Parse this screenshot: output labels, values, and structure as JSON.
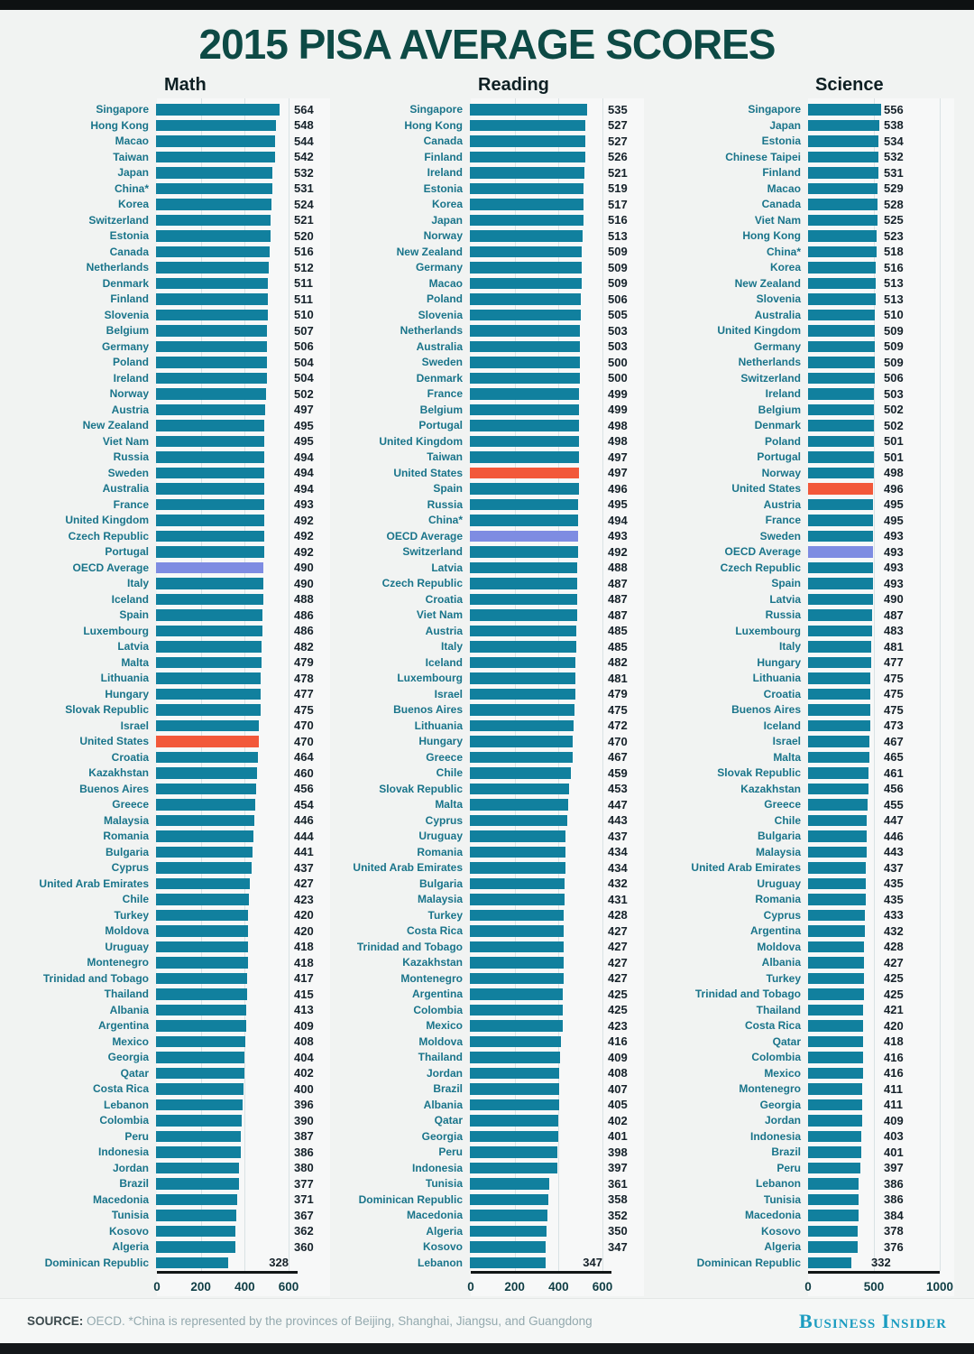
{
  "title": "2015 PISA AVERAGE SCORES",
  "footer": {
    "source_label": "SOURCE:",
    "source_text": "OECD. *China is represented by the provinces of Beijing, Shanghai, Jiangsu, and Guangdong",
    "brand": "Business Insider"
  },
  "colors": {
    "bar": "#11809e",
    "highlight_us": "#f2583a",
    "highlight_oecd": "#7e8ce2",
    "title_text": "#0d4a45",
    "label_text": "#19748a",
    "value_text": "#16222a",
    "background": "#f1f3f2",
    "axis": "#121617",
    "gridline": "#d9e2e4",
    "brand_text": "#1b9cc0"
  },
  "chart_data": [
    {
      "type": "bar",
      "orientation": "horizontal",
      "title": "Math",
      "xlim": [
        0,
        600
      ],
      "xticks": [
        0,
        200,
        400,
        600
      ],
      "grid": true,
      "rows": [
        {
          "label": "Singapore",
          "value": 564
        },
        {
          "label": "Hong Kong",
          "value": 548
        },
        {
          "label": "Macao",
          "value": 544
        },
        {
          "label": "Taiwan",
          "value": 542
        },
        {
          "label": "Japan",
          "value": 532
        },
        {
          "label": "China*",
          "value": 531
        },
        {
          "label": "Korea",
          "value": 524
        },
        {
          "label": "Switzerland",
          "value": 521
        },
        {
          "label": "Estonia",
          "value": 520
        },
        {
          "label": "Canada",
          "value": 516
        },
        {
          "label": "Netherlands",
          "value": 512
        },
        {
          "label": "Denmark",
          "value": 511
        },
        {
          "label": "Finland",
          "value": 511
        },
        {
          "label": "Slovenia",
          "value": 510
        },
        {
          "label": "Belgium",
          "value": 507
        },
        {
          "label": "Germany",
          "value": 506
        },
        {
          "label": "Poland",
          "value": 504
        },
        {
          "label": "Ireland",
          "value": 504
        },
        {
          "label": "Norway",
          "value": 502
        },
        {
          "label": "Austria",
          "value": 497
        },
        {
          "label": "New Zealand",
          "value": 495
        },
        {
          "label": "Viet Nam",
          "value": 495
        },
        {
          "label": "Russia",
          "value": 494
        },
        {
          "label": "Sweden",
          "value": 494
        },
        {
          "label": "Australia",
          "value": 494
        },
        {
          "label": "France",
          "value": 493
        },
        {
          "label": "United Kingdom",
          "value": 492
        },
        {
          "label": "Czech Republic",
          "value": 492
        },
        {
          "label": "Portugal",
          "value": 492
        },
        {
          "label": "OECD Average",
          "value": 490,
          "highlight": "oecd"
        },
        {
          "label": "Italy",
          "value": 490
        },
        {
          "label": "Iceland",
          "value": 488
        },
        {
          "label": "Spain",
          "value": 486
        },
        {
          "label": "Luxembourg",
          "value": 486
        },
        {
          "label": "Latvia",
          "value": 482
        },
        {
          "label": "Malta",
          "value": 479
        },
        {
          "label": "Lithuania",
          "value": 478
        },
        {
          "label": "Hungary",
          "value": 477
        },
        {
          "label": "Slovak Republic",
          "value": 475
        },
        {
          "label": "Israel",
          "value": 470
        },
        {
          "label": "United States",
          "value": 470,
          "highlight": "us"
        },
        {
          "label": "Croatia",
          "value": 464
        },
        {
          "label": "Kazakhstan",
          "value": 460
        },
        {
          "label": "Buenos Aires",
          "value": 456
        },
        {
          "label": "Greece",
          "value": 454
        },
        {
          "label": "Malaysia",
          "value": 446
        },
        {
          "label": "Romania",
          "value": 444
        },
        {
          "label": "Bulgaria",
          "value": 441
        },
        {
          "label": "Cyprus",
          "value": 437
        },
        {
          "label": "United Arab Emirates",
          "value": 427
        },
        {
          "label": "Chile",
          "value": 423
        },
        {
          "label": "Turkey",
          "value": 420
        },
        {
          "label": "Moldova",
          "value": 420
        },
        {
          "label": "Uruguay",
          "value": 418
        },
        {
          "label": "Montenegro",
          "value": 418
        },
        {
          "label": "Trinidad and Tobago",
          "value": 417
        },
        {
          "label": "Thailand",
          "value": 415
        },
        {
          "label": "Albania",
          "value": 413
        },
        {
          "label": "Argentina",
          "value": 409
        },
        {
          "label": "Mexico",
          "value": 408
        },
        {
          "label": "Georgia",
          "value": 404
        },
        {
          "label": "Qatar",
          "value": 402
        },
        {
          "label": "Costa Rica",
          "value": 400
        },
        {
          "label": "Lebanon",
          "value": 396
        },
        {
          "label": "Colombia",
          "value": 390
        },
        {
          "label": "Peru",
          "value": 387
        },
        {
          "label": "Indonesia",
          "value": 386
        },
        {
          "label": "Jordan",
          "value": 380
        },
        {
          "label": "Brazil",
          "value": 377
        },
        {
          "label": "Macedonia",
          "value": 371
        },
        {
          "label": "Tunisia",
          "value": 367
        },
        {
          "label": "Kosovo",
          "value": 362
        },
        {
          "label": "Algeria",
          "value": 360
        },
        {
          "label": "Dominican Republic",
          "value": 328
        }
      ]
    },
    {
      "type": "bar",
      "orientation": "horizontal",
      "title": "Reading",
      "xlim": [
        0,
        600
      ],
      "xticks": [
        0,
        200,
        400,
        600
      ],
      "grid": true,
      "rows": [
        {
          "label": "Singapore",
          "value": 535
        },
        {
          "label": "Hong Kong",
          "value": 527
        },
        {
          "label": "Canada",
          "value": 527
        },
        {
          "label": "Finland",
          "value": 526
        },
        {
          "label": "Ireland",
          "value": 521
        },
        {
          "label": "Estonia",
          "value": 519
        },
        {
          "label": "Korea",
          "value": 517
        },
        {
          "label": "Japan",
          "value": 516
        },
        {
          "label": "Norway",
          "value": 513
        },
        {
          "label": "New Zealand",
          "value": 509
        },
        {
          "label": "Germany",
          "value": 509
        },
        {
          "label": "Macao",
          "value": 509
        },
        {
          "label": "Poland",
          "value": 506
        },
        {
          "label": "Slovenia",
          "value": 505
        },
        {
          "label": "Netherlands",
          "value": 503
        },
        {
          "label": "Australia",
          "value": 503
        },
        {
          "label": "Sweden",
          "value": 500
        },
        {
          "label": "Denmark",
          "value": 500
        },
        {
          "label": "France",
          "value": 499
        },
        {
          "label": "Belgium",
          "value": 499
        },
        {
          "label": "Portugal",
          "value": 498
        },
        {
          "label": "United Kingdom",
          "value": 498
        },
        {
          "label": "Taiwan",
          "value": 497
        },
        {
          "label": "United States",
          "value": 497,
          "highlight": "us"
        },
        {
          "label": "Spain",
          "value": 496
        },
        {
          "label": "Russia",
          "value": 495
        },
        {
          "label": "China*",
          "value": 494
        },
        {
          "label": "OECD Average",
          "value": 493,
          "highlight": "oecd"
        },
        {
          "label": "Switzerland",
          "value": 492
        },
        {
          "label": "Latvia",
          "value": 488
        },
        {
          "label": "Czech Republic",
          "value": 487
        },
        {
          "label": "Croatia",
          "value": 487
        },
        {
          "label": "Viet Nam",
          "value": 487
        },
        {
          "label": "Austria",
          "value": 485
        },
        {
          "label": "Italy",
          "value": 485
        },
        {
          "label": "Iceland",
          "value": 482
        },
        {
          "label": "Luxembourg",
          "value": 481
        },
        {
          "label": "Israel",
          "value": 479
        },
        {
          "label": "Buenos Aires",
          "value": 475
        },
        {
          "label": "Lithuania",
          "value": 472
        },
        {
          "label": "Hungary",
          "value": 470
        },
        {
          "label": "Greece",
          "value": 467
        },
        {
          "label": "Chile",
          "value": 459
        },
        {
          "label": "Slovak Republic",
          "value": 453
        },
        {
          "label": "Malta",
          "value": 447
        },
        {
          "label": "Cyprus",
          "value": 443
        },
        {
          "label": "Uruguay",
          "value": 437
        },
        {
          "label": "Romania",
          "value": 434
        },
        {
          "label": "United Arab Emirates",
          "value": 434
        },
        {
          "label": "Bulgaria",
          "value": 432
        },
        {
          "label": "Malaysia",
          "value": 431
        },
        {
          "label": "Turkey",
          "value": 428
        },
        {
          "label": "Costa Rica",
          "value": 427
        },
        {
          "label": "Trinidad and Tobago",
          "value": 427
        },
        {
          "label": "Kazakhstan",
          "value": 427
        },
        {
          "label": "Montenegro",
          "value": 427
        },
        {
          "label": "Argentina",
          "value": 425
        },
        {
          "label": "Colombia",
          "value": 425
        },
        {
          "label": "Mexico",
          "value": 423
        },
        {
          "label": "Moldova",
          "value": 416
        },
        {
          "label": "Thailand",
          "value": 409
        },
        {
          "label": "Jordan",
          "value": 408
        },
        {
          "label": "Brazil",
          "value": 407
        },
        {
          "label": "Albania",
          "value": 405
        },
        {
          "label": "Qatar",
          "value": 402
        },
        {
          "label": "Georgia",
          "value": 401
        },
        {
          "label": "Peru",
          "value": 398
        },
        {
          "label": "Indonesia",
          "value": 397
        },
        {
          "label": "Tunisia",
          "value": 361
        },
        {
          "label": "Dominican Republic",
          "value": 358
        },
        {
          "label": "Macedonia",
          "value": 352
        },
        {
          "label": "Algeria",
          "value": 350
        },
        {
          "label": "Kosovo",
          "value": 347
        },
        {
          "label": "Lebanon",
          "value": 347
        }
      ]
    },
    {
      "type": "bar",
      "orientation": "horizontal",
      "title": "Science",
      "xlim": [
        0,
        1000
      ],
      "xticks": [
        0,
        500,
        1000
      ],
      "grid": true,
      "rows": [
        {
          "label": "Singapore",
          "value": 556
        },
        {
          "label": "Japan",
          "value": 538
        },
        {
          "label": "Estonia",
          "value": 534
        },
        {
          "label": "Chinese Taipei",
          "value": 532
        },
        {
          "label": "Finland",
          "value": 531
        },
        {
          "label": "Macao",
          "value": 529
        },
        {
          "label": "Canada",
          "value": 528
        },
        {
          "label": "Viet Nam",
          "value": 525
        },
        {
          "label": "Hong Kong",
          "value": 523
        },
        {
          "label": "China*",
          "value": 518
        },
        {
          "label": "Korea",
          "value": 516
        },
        {
          "label": "New Zealand",
          "value": 513
        },
        {
          "label": "Slovenia",
          "value": 513
        },
        {
          "label": "Australia",
          "value": 510
        },
        {
          "label": "United Kingdom",
          "value": 509
        },
        {
          "label": "Germany",
          "value": 509
        },
        {
          "label": "Netherlands",
          "value": 509
        },
        {
          "label": "Switzerland",
          "value": 506
        },
        {
          "label": "Ireland",
          "value": 503
        },
        {
          "label": "Belgium",
          "value": 502
        },
        {
          "label": "Denmark",
          "value": 502
        },
        {
          "label": "Poland",
          "value": 501
        },
        {
          "label": "Portugal",
          "value": 501
        },
        {
          "label": "Norway",
          "value": 498
        },
        {
          "label": "United States",
          "value": 496,
          "highlight": "us"
        },
        {
          "label": "Austria",
          "value": 495
        },
        {
          "label": "France",
          "value": 495
        },
        {
          "label": "Sweden",
          "value": 493
        },
        {
          "label": "OECD Average",
          "value": 493,
          "highlight": "oecd"
        },
        {
          "label": "Czech Republic",
          "value": 493
        },
        {
          "label": "Spain",
          "value": 493
        },
        {
          "label": "Latvia",
          "value": 490
        },
        {
          "label": "Russia",
          "value": 487
        },
        {
          "label": "Luxembourg",
          "value": 483
        },
        {
          "label": "Italy",
          "value": 481
        },
        {
          "label": "Hungary",
          "value": 477
        },
        {
          "label": "Lithuania",
          "value": 475
        },
        {
          "label": "Croatia",
          "value": 475
        },
        {
          "label": "Buenos Aires",
          "value": 475
        },
        {
          "label": "Iceland",
          "value": 473
        },
        {
          "label": "Israel",
          "value": 467
        },
        {
          "label": "Malta",
          "value": 465
        },
        {
          "label": "Slovak Republic",
          "value": 461
        },
        {
          "label": "Kazakhstan",
          "value": 456
        },
        {
          "label": "Greece",
          "value": 455
        },
        {
          "label": "Chile",
          "value": 447
        },
        {
          "label": "Bulgaria",
          "value": 446
        },
        {
          "label": "Malaysia",
          "value": 443
        },
        {
          "label": "United Arab Emirates",
          "value": 437
        },
        {
          "label": "Uruguay",
          "value": 435
        },
        {
          "label": "Romania",
          "value": 435
        },
        {
          "label": "Cyprus",
          "value": 433
        },
        {
          "label": "Argentina",
          "value": 432
        },
        {
          "label": "Moldova",
          "value": 428
        },
        {
          "label": "Albania",
          "value": 427
        },
        {
          "label": "Turkey",
          "value": 425
        },
        {
          "label": "Trinidad and Tobago",
          "value": 425
        },
        {
          "label": "Thailand",
          "value": 421
        },
        {
          "label": "Costa Rica",
          "value": 420
        },
        {
          "label": "Qatar",
          "value": 418
        },
        {
          "label": "Colombia",
          "value": 416
        },
        {
          "label": "Mexico",
          "value": 416
        },
        {
          "label": "Montenegro",
          "value": 411
        },
        {
          "label": "Georgia",
          "value": 411
        },
        {
          "label": "Jordan",
          "value": 409
        },
        {
          "label": "Indonesia",
          "value": 403
        },
        {
          "label": "Brazil",
          "value": 401
        },
        {
          "label": "Peru",
          "value": 397
        },
        {
          "label": "Lebanon",
          "value": 386
        },
        {
          "label": "Tunisia",
          "value": 386
        },
        {
          "label": "Macedonia",
          "value": 384
        },
        {
          "label": "Kosovo",
          "value": 378
        },
        {
          "label": "Algeria",
          "value": 376
        },
        {
          "label": "Dominican Republic",
          "value": 332
        }
      ]
    }
  ]
}
